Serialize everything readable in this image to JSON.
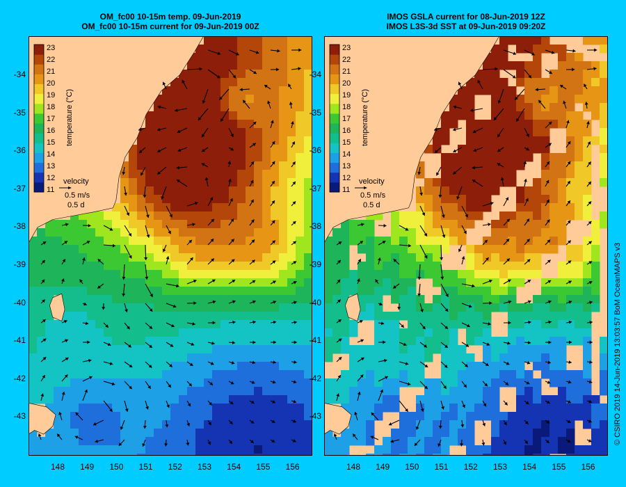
{
  "panels": [
    {
      "title_line1": "OM_fc00 10-15m temp. 09-Jun-2019",
      "title_line2": "OM_fc00 10-15m current for 09-Jun-2019 00Z",
      "kind": "model"
    },
    {
      "title_line1": "IMOS GSLA current for 08-Jun-2019 12Z",
      "title_line2": "IMOS L3S-3d SST at 09-Jun-2019 09:20Z",
      "kind": "observed"
    }
  ],
  "colorbar": {
    "label": "temperature (°C)",
    "ticks": [
      "23",
      "22",
      "21",
      "20",
      "19",
      "18",
      "17",
      "16",
      "15",
      "14",
      "13",
      "12",
      "11"
    ]
  },
  "velocity_legend": {
    "title": "velocity",
    "speed": "0.5 m/s",
    "duration": "0.5 d"
  },
  "axes": {
    "lat_ticks": [
      "-34",
      "-35",
      "-36",
      "-37",
      "-38",
      "-39",
      "-40",
      "-41",
      "-42",
      "-43"
    ],
    "lon_ticks": [
      "148",
      "149",
      "150",
      "151",
      "152",
      "153",
      "154",
      "155",
      "156"
    ]
  },
  "copyright": "© CSIRO 2019   14-Jun-2019 13:03:57 BoM OceanMAPS v3",
  "colors": {
    "background": "#00ccff",
    "land": "#ffcc99",
    "temp_scale": [
      "#0a1a7a",
      "#1434b4",
      "#1e6edc",
      "#1ea0e6",
      "#14c3c3",
      "#14be8c",
      "#1eb45a",
      "#3cc832",
      "#a0e61e",
      "#f0f03c",
      "#f0c828",
      "#e69614",
      "#d27314",
      "#b4460a",
      "#8c1e0a"
    ]
  }
}
